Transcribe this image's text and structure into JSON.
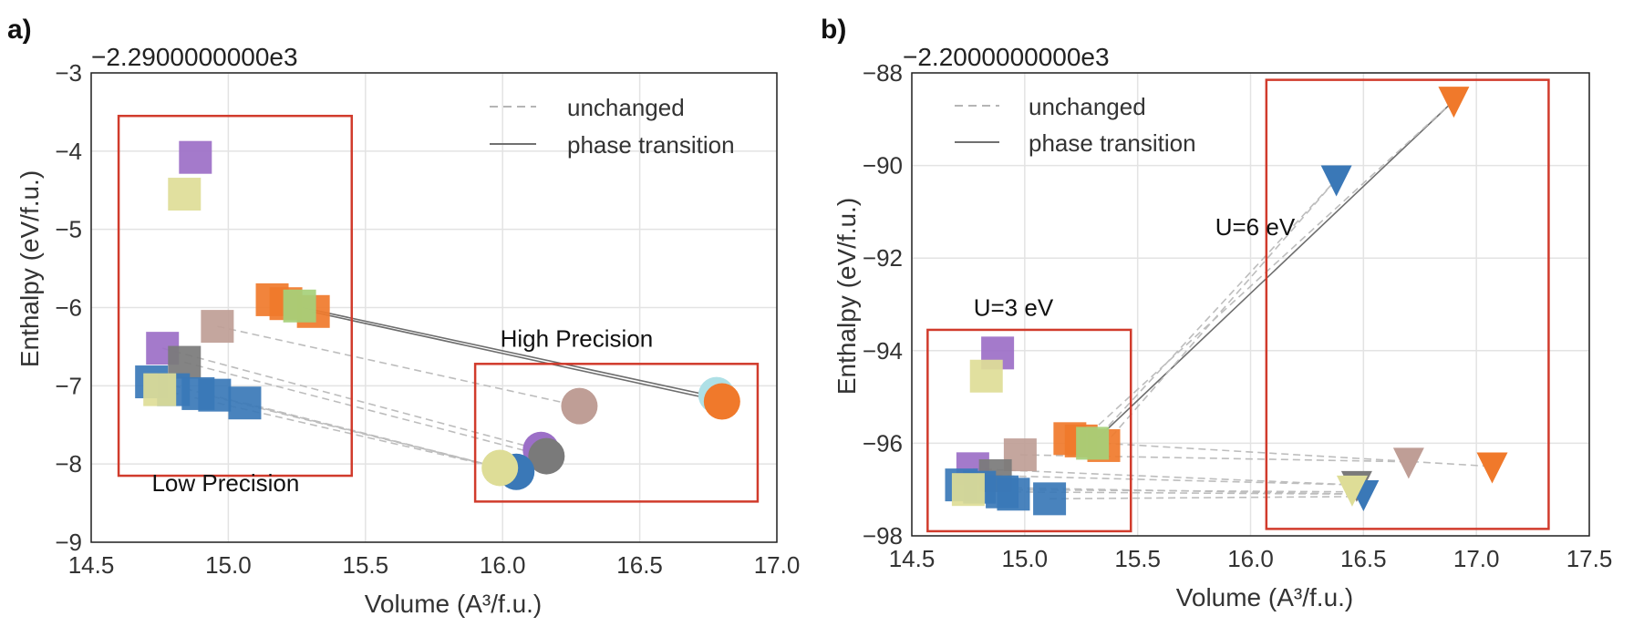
{
  "figure": {
    "panel_a_letter": "a)",
    "panel_b_letter": "b)"
  },
  "colors": {
    "blue": "#3a78b7",
    "orange": "#f0792b",
    "green": "#a6d07a",
    "purple": "#9c6fc7",
    "khaki": "#dedd97",
    "brown": "#bf9e96",
    "gray": "#7a7a7a",
    "cyan": "#aee0e6",
    "annotation_box": "#d13b2c"
  },
  "chart_data": [
    {
      "id": "a",
      "type": "scatter",
      "panel": "a)",
      "offset_text": "−2.2900000000e3",
      "xlabel": "Volume (A³/f.u.)",
      "ylabel": "Enthalpy (eV/f.u.)",
      "xlim": [
        14.5,
        17.0
      ],
      "ylim": [
        -9,
        -3
      ],
      "xticks": [
        14.5,
        15.0,
        15.5,
        16.0,
        16.5,
        17.0
      ],
      "xtick_labels": [
        "14.5",
        "15.0",
        "15.5",
        "16.0",
        "16.5",
        "17.0"
      ],
      "yticks": [
        -9,
        -8,
        -7,
        -6,
        -5,
        -4,
        -3
      ],
      "ytick_labels": [
        "−9",
        "−8",
        "−7",
        "−6",
        "−5",
        "−4",
        "−3"
      ],
      "legend": [
        {
          "label": "unchanged",
          "style": "dashed"
        },
        {
          "label": "phase transition",
          "style": "solid"
        }
      ],
      "annotations": [
        {
          "text": "High Precision",
          "x": 16.27,
          "y": -6.5
        },
        {
          "text": "Low Precision",
          "x": 14.99,
          "y": -8.35
        }
      ],
      "boxes": [
        {
          "x0": 14.6,
          "x1": 15.45,
          "y0": -8.15,
          "y1": -3.55
        },
        {
          "x0": 15.9,
          "x1": 16.93,
          "y0": -8.48,
          "y1": -6.72
        }
      ],
      "series": [
        {
          "name": "low precision",
          "marker": "square",
          "points": [
            {
              "x": 14.88,
              "y": -4.08,
              "color": "purple"
            },
            {
              "x": 14.84,
              "y": -4.55,
              "color": "khaki"
            },
            {
              "x": 15.16,
              "y": -5.9,
              "color": "orange"
            },
            {
              "x": 15.21,
              "y": -5.95,
              "color": "orange"
            },
            {
              "x": 15.31,
              "y": -6.05,
              "color": "orange"
            },
            {
              "x": 15.26,
              "y": -5.98,
              "color": "green"
            },
            {
              "x": 14.96,
              "y": -6.24,
              "color": "brown"
            },
            {
              "x": 14.76,
              "y": -6.52,
              "color": "purple"
            },
            {
              "x": 14.84,
              "y": -6.7,
              "color": "gray"
            },
            {
              "x": 14.72,
              "y": -6.95,
              "color": "blue"
            },
            {
              "x": 14.8,
              "y": -7.05,
              "color": "blue"
            },
            {
              "x": 14.89,
              "y": -7.1,
              "color": "blue"
            },
            {
              "x": 14.95,
              "y": -7.12,
              "color": "blue"
            },
            {
              "x": 15.06,
              "y": -7.22,
              "color": "blue"
            },
            {
              "x": 14.75,
              "y": -7.05,
              "color": "khaki"
            }
          ]
        },
        {
          "name": "high precision",
          "marker": "circle",
          "points": [
            {
              "x": 16.78,
              "y": -7.12,
              "color": "cyan"
            },
            {
              "x": 16.8,
              "y": -7.2,
              "color": "orange"
            },
            {
              "x": 16.28,
              "y": -7.26,
              "color": "brown"
            },
            {
              "x": 16.14,
              "y": -7.82,
              "color": "purple"
            },
            {
              "x": 16.16,
              "y": -7.9,
              "color": "gray"
            },
            {
              "x": 16.05,
              "y": -8.1,
              "color": "blue"
            },
            {
              "x": 15.99,
              "y": -8.05,
              "color": "khaki"
            }
          ]
        }
      ],
      "connections": [
        {
          "from": [
            15.27,
            -6.0
          ],
          "to": [
            16.79,
            -7.15
          ],
          "style": "solid"
        },
        {
          "from": [
            15.3,
            -6.05
          ],
          "to": [
            16.8,
            -7.2
          ],
          "style": "solid"
        },
        {
          "from": [
            14.96,
            -6.24
          ],
          "to": [
            16.28,
            -7.26
          ],
          "style": "dashed"
        },
        {
          "from": [
            14.76,
            -6.52
          ],
          "to": [
            16.14,
            -7.82
          ],
          "style": "dashed"
        },
        {
          "from": [
            14.84,
            -6.7
          ],
          "to": [
            16.16,
            -7.9
          ],
          "style": "dashed"
        },
        {
          "from": [
            14.8,
            -7.0
          ],
          "to": [
            16.05,
            -8.1
          ],
          "style": "dashed"
        },
        {
          "from": [
            14.9,
            -7.1
          ],
          "to": [
            16.05,
            -8.1
          ],
          "style": "dashed"
        },
        {
          "from": [
            15.06,
            -7.22
          ],
          "to": [
            16.05,
            -8.1
          ],
          "style": "dashed"
        },
        {
          "from": [
            14.75,
            -7.05
          ],
          "to": [
            15.99,
            -8.05
          ],
          "style": "dashed"
        }
      ]
    },
    {
      "id": "b",
      "type": "scatter",
      "panel": "b)",
      "offset_text": "−2.2000000000e3",
      "xlabel": "Volume (A³/f.u.)",
      "ylabel": "Enthalpy (eV/f.u.)",
      "xlim": [
        14.5,
        17.5
      ],
      "ylim": [
        -98,
        -88
      ],
      "xticks": [
        14.5,
        15.0,
        15.5,
        16.0,
        16.5,
        17.0,
        17.5
      ],
      "xtick_labels": [
        "14.5",
        "15.0",
        "15.5",
        "16.0",
        "16.5",
        "17.0",
        "17.5"
      ],
      "yticks": [
        -98,
        -96,
        -94,
        -92,
        -90,
        -88
      ],
      "ytick_labels": [
        "−98",
        "−96",
        "−94",
        "−92",
        "−90",
        "−88"
      ],
      "legend": [
        {
          "label": "unchanged",
          "style": "dashed"
        },
        {
          "label": "phase transition",
          "style": "solid"
        }
      ],
      "annotations": [
        {
          "text": "U=6 eV",
          "x": 16.02,
          "y": -91.5
        },
        {
          "text": "U=3 eV",
          "x": 14.95,
          "y": -93.25
        }
      ],
      "boxes": [
        {
          "x0": 14.57,
          "x1": 15.47,
          "y0": -97.9,
          "y1": -93.55
        },
        {
          "x0": 16.07,
          "x1": 17.32,
          "y0": -97.85,
          "y1": -88.15
        }
      ],
      "series": [
        {
          "name": "U=3 eV",
          "marker": "square",
          "points": [
            {
              "x": 14.88,
              "y": -94.05,
              "color": "purple"
            },
            {
              "x": 14.83,
              "y": -94.55,
              "color": "khaki"
            },
            {
              "x": 15.2,
              "y": -95.9,
              "color": "orange"
            },
            {
              "x": 15.25,
              "y": -95.95,
              "color": "orange"
            },
            {
              "x": 15.35,
              "y": -96.05,
              "color": "orange"
            },
            {
              "x": 15.3,
              "y": -96.0,
              "color": "green"
            },
            {
              "x": 14.98,
              "y": -96.25,
              "color": "brown"
            },
            {
              "x": 14.77,
              "y": -96.55,
              "color": "purple"
            },
            {
              "x": 14.87,
              "y": -96.7,
              "color": "gray"
            },
            {
              "x": 14.72,
              "y": -96.9,
              "color": "blue"
            },
            {
              "x": 14.8,
              "y": -96.95,
              "color": "blue"
            },
            {
              "x": 14.9,
              "y": -97.05,
              "color": "blue"
            },
            {
              "x": 14.95,
              "y": -97.1,
              "color": "blue"
            },
            {
              "x": 15.11,
              "y": -97.2,
              "color": "blue"
            },
            {
              "x": 14.75,
              "y": -97.0,
              "color": "khaki"
            }
          ]
        },
        {
          "name": "U=6 eV",
          "marker": "triangle-down",
          "points": [
            {
              "x": 16.9,
              "y": -88.6,
              "color": "orange"
            },
            {
              "x": 16.38,
              "y": -90.3,
              "color": "blue"
            },
            {
              "x": 16.7,
              "y": -96.4,
              "color": "brown"
            },
            {
              "x": 17.07,
              "y": -96.5,
              "color": "orange"
            },
            {
              "x": 16.47,
              "y": -96.9,
              "color": "gray"
            },
            {
              "x": 16.5,
              "y": -97.1,
              "color": "blue"
            },
            {
              "x": 16.45,
              "y": -97.0,
              "color": "khaki"
            }
          ]
        }
      ],
      "connections": [
        {
          "from": [
            15.3,
            -96.0
          ],
          "to": [
            16.9,
            -88.6
          ],
          "style": "solid"
        },
        {
          "from": [
            15.25,
            -95.95
          ],
          "to": [
            16.9,
            -88.6
          ],
          "style": "dashed"
        },
        {
          "from": [
            15.35,
            -96.05
          ],
          "to": [
            16.38,
            -90.3
          ],
          "style": "dashed"
        },
        {
          "from": [
            15.3,
            -96.0
          ],
          "to": [
            16.38,
            -90.3
          ],
          "style": "dashed"
        },
        {
          "from": [
            14.98,
            -96.25
          ],
          "to": [
            16.7,
            -96.4
          ],
          "style": "dashed"
        },
        {
          "from": [
            15.35,
            -96.0
          ],
          "to": [
            17.07,
            -96.5
          ],
          "style": "dashed"
        },
        {
          "from": [
            14.87,
            -96.7
          ],
          "to": [
            16.47,
            -96.9
          ],
          "style": "dashed"
        },
        {
          "from": [
            14.77,
            -96.55
          ],
          "to": [
            16.47,
            -96.9
          ],
          "style": "dashed"
        },
        {
          "from": [
            14.8,
            -96.95
          ],
          "to": [
            16.5,
            -97.1
          ],
          "style": "dashed"
        },
        {
          "from": [
            14.9,
            -97.05
          ],
          "to": [
            16.5,
            -97.1
          ],
          "style": "dashed"
        },
        {
          "from": [
            15.11,
            -97.2
          ],
          "to": [
            16.5,
            -97.15
          ],
          "style": "dashed"
        },
        {
          "from": [
            14.75,
            -97.0
          ],
          "to": [
            16.45,
            -97.05
          ],
          "style": "dashed"
        }
      ]
    }
  ]
}
